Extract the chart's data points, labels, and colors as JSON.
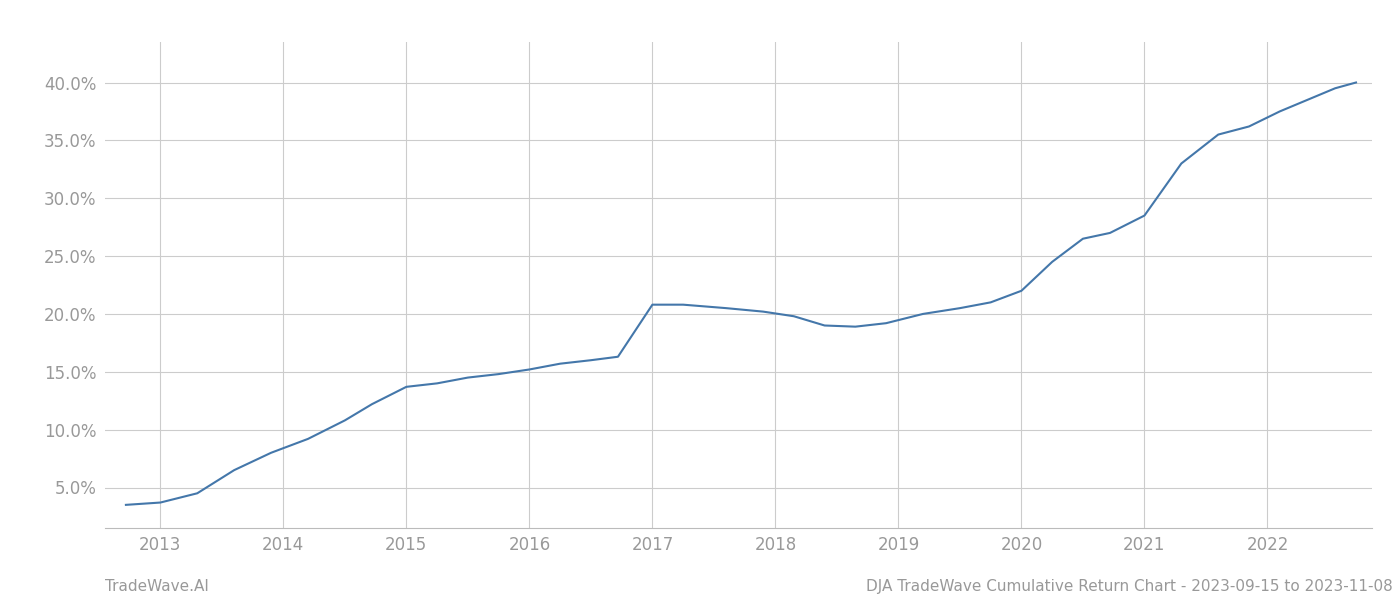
{
  "x_years": [
    2012.72,
    2013.0,
    2013.3,
    2013.6,
    2013.9,
    2014.2,
    2014.5,
    2014.72,
    2015.0,
    2015.25,
    2015.5,
    2015.75,
    2016.0,
    2016.25,
    2016.5,
    2016.72,
    2017.0,
    2017.25,
    2017.6,
    2017.9,
    2018.15,
    2018.4,
    2018.65,
    2018.9,
    2019.2,
    2019.5,
    2019.75,
    2020.0,
    2020.25,
    2020.5,
    2020.72,
    2021.0,
    2021.3,
    2021.6,
    2021.85,
    2022.1,
    2022.55,
    2022.72
  ],
  "y_values": [
    3.5,
    3.7,
    4.5,
    6.5,
    8.0,
    9.2,
    10.8,
    12.2,
    13.7,
    14.0,
    14.5,
    14.8,
    15.2,
    15.7,
    16.0,
    16.3,
    20.8,
    20.8,
    20.5,
    20.2,
    19.8,
    19.0,
    18.9,
    19.2,
    20.0,
    20.5,
    21.0,
    22.0,
    24.5,
    26.5,
    27.0,
    28.5,
    33.0,
    35.5,
    36.2,
    37.5,
    39.5,
    40.0
  ],
  "line_color": "#4477aa",
  "line_width": 1.5,
  "background_color": "#ffffff",
  "grid_color": "#cccccc",
  "yticks": [
    5.0,
    10.0,
    15.0,
    20.0,
    25.0,
    30.0,
    35.0,
    40.0
  ],
  "xticks": [
    2013,
    2014,
    2015,
    2016,
    2017,
    2018,
    2019,
    2020,
    2021,
    2022
  ],
  "xlim": [
    2012.55,
    2022.85
  ],
  "ylim": [
    1.5,
    43.5
  ],
  "footer_left": "TradeWave.AI",
  "footer_right": "DJA TradeWave Cumulative Return Chart - 2023-09-15 to 2023-11-08",
  "tick_label_color": "#999999",
  "footer_color": "#999999",
  "footer_fontsize": 11,
  "tick_fontsize": 12
}
